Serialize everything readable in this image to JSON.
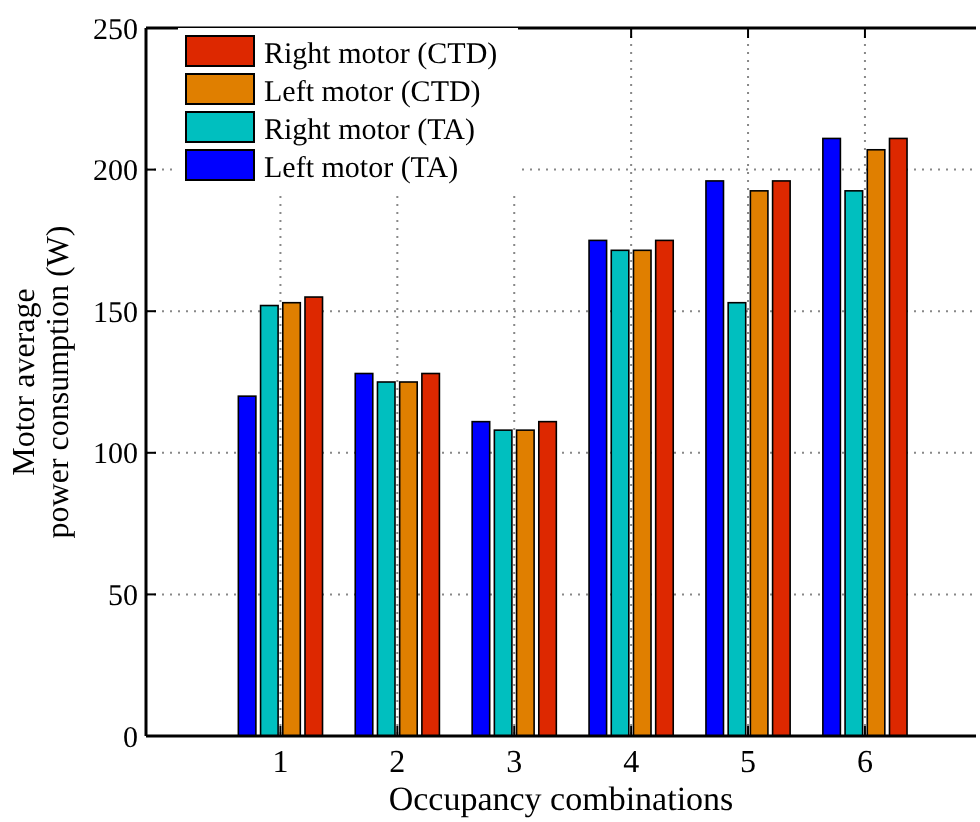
{
  "chart_data": {
    "type": "bar",
    "xlabel": "Occupancy combinations",
    "ylabel": "Motor average\npower consumption (W)",
    "categories": [
      "1",
      "2",
      "3",
      "4",
      "5",
      "6"
    ],
    "series": [
      {
        "name": "Left motor (TA)",
        "color": "#0000ff",
        "values": [
          120,
          128,
          111,
          175,
          196,
          211
        ]
      },
      {
        "name": "Right motor (TA)",
        "color": "#00bfbf",
        "values": [
          152,
          125,
          108,
          171.5,
          153,
          192.5
        ]
      },
      {
        "name": "Left motor (CTD)",
        "color": "#e07f00",
        "values": [
          153,
          125,
          108,
          171.5,
          192.5,
          207
        ]
      },
      {
        "name": "Right motor (CTD)",
        "color": "#dd2800",
        "values": [
          155,
          128,
          111,
          175,
          196,
          211
        ]
      }
    ],
    "ylim": [
      0,
      250
    ],
    "yticks": [
      0,
      50,
      100,
      150,
      200,
      250
    ],
    "grid": true,
    "legend": "top left"
  }
}
